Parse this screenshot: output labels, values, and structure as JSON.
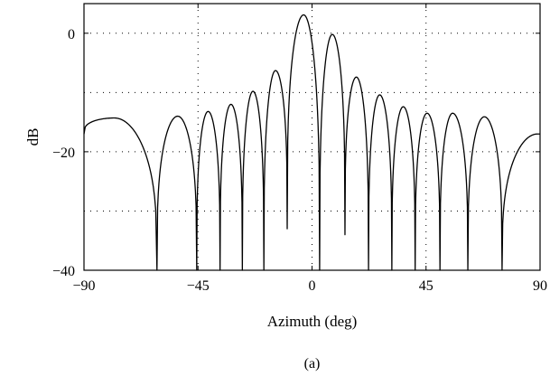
{
  "chart_data": {
    "type": "line",
    "title": "",
    "xlabel": "Azimuth (deg)",
    "ylabel": "dB",
    "caption": "(a)",
    "xlim": [
      -90,
      90
    ],
    "ylim": [
      -40,
      5
    ],
    "xticks": [
      -90,
      -45,
      0,
      45,
      90
    ],
    "xtick_labels": [
      "−90",
      "−45",
      "0",
      "45",
      "90"
    ],
    "yticks": [
      -40,
      -20,
      0
    ],
    "ytick_labels": [
      "−40",
      "−20",
      "0"
    ],
    "grid": true,
    "grid_x": [
      -45,
      0,
      45
    ],
    "grid_y": [
      -30,
      -20,
      -10,
      0
    ],
    "series": [
      {
        "color": "#000000",
        "lobes": [
          {
            "start": -90,
            "end": -61.2,
            "peak_x": -78.0,
            "peak": -14.3,
            "start_level": -17.0,
            "end_level": -40
          },
          {
            "start": -61.2,
            "end": -45.5,
            "peak_x": -53.0,
            "peak": -14.0,
            "start_level": -40,
            "end_level": -40
          },
          {
            "start": -45.5,
            "end": -36.3,
            "peak_x": -41.0,
            "peak": -13.2,
            "start_level": -40,
            "end_level": -40
          },
          {
            "start": -36.3,
            "end": -27.5,
            "peak_x": -32.0,
            "peak": -12.0,
            "start_level": -40,
            "end_level": -40
          },
          {
            "start": -27.5,
            "end": -19.0,
            "peak_x": -23.3,
            "peak": -9.8,
            "start_level": -40,
            "end_level": -40
          },
          {
            "start": -19.0,
            "end": -9.8,
            "peak_x": -14.4,
            "peak": -6.3,
            "start_level": -40,
            "end_level": -33.0
          },
          {
            "start": -9.8,
            "end": 3.0,
            "peak_x": -3.3,
            "peak": 3.1,
            "start_level": -33.0,
            "end_level": -40
          },
          {
            "start": 3.0,
            "end": 13.0,
            "peak_x": 8.0,
            "peak": -0.2,
            "start_level": -40,
            "end_level": -34.0
          },
          {
            "start": 13.0,
            "end": 22.3,
            "peak_x": 17.5,
            "peak": -7.4,
            "start_level": -34.0,
            "end_level": -40
          },
          {
            "start": 22.3,
            "end": 31.5,
            "peak_x": 26.7,
            "peak": -10.4,
            "start_level": -40,
            "end_level": -40
          },
          {
            "start": 31.5,
            "end": 40.7,
            "peak_x": 36.0,
            "peak": -12.4,
            "start_level": -40,
            "end_level": -40
          },
          {
            "start": 40.7,
            "end": 50.5,
            "peak_x": 45.4,
            "peak": -13.5,
            "start_level": -40,
            "end_level": -40
          },
          {
            "start": 50.5,
            "end": 61.5,
            "peak_x": 55.5,
            "peak": -13.5,
            "start_level": -40,
            "end_level": -40
          },
          {
            "start": 61.5,
            "end": 75.0,
            "peak_x": 68.0,
            "peak": -14.1,
            "start_level": -40,
            "end_level": -40
          },
          {
            "start": 75.0,
            "end": 90.0,
            "peak_x": 89.0,
            "peak": -17.0,
            "start_level": -40,
            "end_level": -17.0
          }
        ]
      }
    ]
  }
}
